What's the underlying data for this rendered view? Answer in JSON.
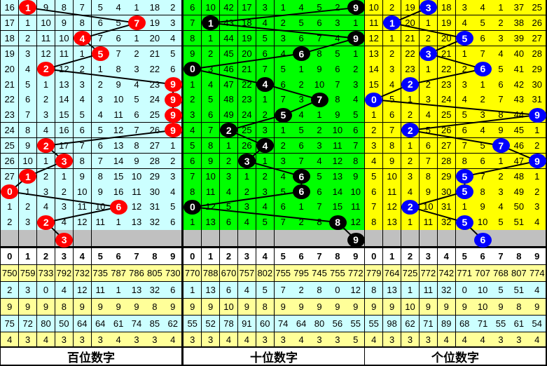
{
  "header_digits": [
    "0",
    "1",
    "2",
    "3",
    "4",
    "5",
    "6",
    "7",
    "8",
    "9"
  ],
  "colors": {
    "grid": "#000000",
    "gray_row": "#C0C0C0",
    "stat_yellow": "#FFFF99",
    "stat_cyan": "#CCFFFF"
  },
  "panels": [
    {
      "label": "百位数字",
      "bg": "#CCFFFF",
      "ball_color": "#FF0000",
      "draws": [
        1,
        7,
        4,
        5,
        2,
        9,
        9,
        9,
        9,
        2,
        3,
        1,
        0,
        6,
        2
      ],
      "next": 3,
      "miss": [
        [
          16,
          null,
          9,
          8,
          7,
          5,
          4,
          1,
          18,
          2
        ],
        [
          17,
          1,
          10,
          9,
          8,
          6,
          5,
          null,
          19,
          3
        ],
        [
          18,
          2,
          11,
          10,
          null,
          7,
          6,
          1,
          20,
          4
        ],
        [
          19,
          3,
          12,
          11,
          1,
          null,
          7,
          2,
          21,
          5
        ],
        [
          20,
          4,
          null,
          12,
          2,
          1,
          8,
          3,
          22,
          6
        ],
        [
          21,
          5,
          1,
          13,
          3,
          2,
          9,
          4,
          23,
          null
        ],
        [
          22,
          6,
          2,
          14,
          4,
          3,
          10,
          5,
          24,
          null
        ],
        [
          23,
          7,
          3,
          15,
          5,
          4,
          11,
          6,
          25,
          null
        ],
        [
          24,
          8,
          4,
          16,
          6,
          5,
          12,
          7,
          26,
          null
        ],
        [
          25,
          9,
          null,
          17,
          7,
          6,
          13,
          8,
          27,
          1
        ],
        [
          26,
          10,
          1,
          null,
          8,
          7,
          14,
          9,
          28,
          2
        ],
        [
          27,
          null,
          2,
          1,
          9,
          8,
          15,
          10,
          29,
          3
        ],
        [
          null,
          1,
          3,
          2,
          10,
          9,
          16,
          11,
          30,
          4
        ],
        [
          1,
          2,
          4,
          3,
          11,
          10,
          null,
          12,
          31,
          5
        ],
        [
          2,
          3,
          null,
          4,
          12,
          11,
          1,
          13,
          32,
          6
        ]
      ],
      "stats": [
        [
          750,
          759,
          733,
          792,
          732,
          735,
          787,
          786,
          805,
          730
        ],
        [
          2,
          3,
          0,
          4,
          12,
          11,
          1,
          13,
          32,
          6
        ],
        [
          9,
          9,
          9,
          8,
          9,
          9,
          9,
          9,
          8,
          9
        ],
        [
          75,
          72,
          80,
          50,
          64,
          64,
          61,
          74,
          85,
          62
        ],
        [
          4,
          3,
          4,
          3,
          3,
          3,
          4,
          3,
          3,
          4
        ]
      ]
    },
    {
      "label": "十位数字",
      "bg": "#00FF00",
      "ball_color": "#000000",
      "draws": [
        9,
        1,
        9,
        6,
        0,
        4,
        7,
        5,
        2,
        4,
        3,
        6,
        6,
        0,
        8
      ],
      "next": 9,
      "miss": [
        [
          6,
          10,
          42,
          17,
          3,
          1,
          4,
          5,
          2,
          null
        ],
        [
          7,
          null,
          43,
          18,
          4,
          2,
          5,
          6,
          3,
          1
        ],
        [
          8,
          1,
          44,
          19,
          5,
          3,
          6,
          7,
          4,
          null
        ],
        [
          9,
          2,
          45,
          20,
          6,
          4,
          null,
          8,
          5,
          1
        ],
        [
          null,
          3,
          46,
          21,
          7,
          5,
          1,
          9,
          6,
          2
        ],
        [
          1,
          4,
          47,
          22,
          null,
          6,
          2,
          10,
          7,
          3
        ],
        [
          2,
          5,
          48,
          23,
          1,
          7,
          3,
          null,
          8,
          4
        ],
        [
          3,
          6,
          49,
          24,
          2,
          null,
          4,
          1,
          9,
          5
        ],
        [
          4,
          7,
          null,
          25,
          3,
          1,
          5,
          2,
          10,
          6
        ],
        [
          5,
          8,
          1,
          26,
          null,
          2,
          6,
          3,
          11,
          7
        ],
        [
          6,
          9,
          2,
          null,
          1,
          3,
          7,
          4,
          12,
          8
        ],
        [
          7,
          10,
          3,
          1,
          2,
          4,
          null,
          5,
          13,
          9
        ],
        [
          8,
          11,
          4,
          2,
          3,
          5,
          null,
          6,
          14,
          10
        ],
        [
          null,
          12,
          5,
          3,
          4,
          6,
          1,
          7,
          15,
          11
        ],
        [
          1,
          13,
          6,
          4,
          5,
          7,
          2,
          8,
          null,
          12
        ]
      ],
      "stats": [
        [
          770,
          788,
          670,
          757,
          802,
          755,
          795,
          745,
          755,
          772
        ],
        [
          1,
          13,
          6,
          4,
          5,
          7,
          2,
          8,
          0,
          12
        ],
        [
          9,
          9,
          10,
          9,
          8,
          9,
          9,
          9,
          9,
          9
        ],
        [
          55,
          52,
          78,
          91,
          60,
          74,
          64,
          80,
          56,
          55
        ],
        [
          3,
          3,
          4,
          4,
          3,
          3,
          4,
          3,
          3,
          5
        ]
      ]
    },
    {
      "label": "个位数字",
      "bg": "#FFFF00",
      "ball_color": "#0000FF",
      "draws": [
        3,
        1,
        5,
        3,
        6,
        2,
        0,
        9,
        2,
        7,
        9,
        5,
        5,
        2,
        5
      ],
      "next": 6,
      "miss": [
        [
          10,
          2,
          19,
          null,
          18,
          3,
          4,
          1,
          37,
          25
        ],
        [
          11,
          null,
          20,
          1,
          19,
          4,
          5,
          2,
          38,
          26
        ],
        [
          12,
          1,
          21,
          2,
          20,
          null,
          6,
          3,
          39,
          27
        ],
        [
          13,
          2,
          22,
          null,
          21,
          1,
          7,
          4,
          40,
          28
        ],
        [
          14,
          3,
          23,
          1,
          22,
          2,
          null,
          5,
          41,
          29
        ],
        [
          15,
          4,
          null,
          2,
          23,
          3,
          1,
          6,
          42,
          30
        ],
        [
          null,
          5,
          1,
          3,
          24,
          4,
          2,
          7,
          43,
          31
        ],
        [
          1,
          6,
          2,
          4,
          25,
          5,
          3,
          8,
          44,
          null
        ],
        [
          2,
          7,
          null,
          5,
          26,
          6,
          4,
          9,
          45,
          1
        ],
        [
          3,
          8,
          1,
          6,
          27,
          7,
          5,
          null,
          46,
          2
        ],
        [
          4,
          9,
          2,
          7,
          28,
          8,
          6,
          1,
          47,
          null
        ],
        [
          5,
          10,
          3,
          8,
          29,
          null,
          7,
          2,
          48,
          1
        ],
        [
          6,
          11,
          4,
          9,
          30,
          null,
          8,
          3,
          49,
          2
        ],
        [
          7,
          12,
          null,
          10,
          31,
          1,
          9,
          4,
          50,
          3
        ],
        [
          8,
          13,
          1,
          11,
          32,
          null,
          10,
          5,
          51,
          4
        ]
      ],
      "stats": [
        [
          779,
          764,
          725,
          772,
          742,
          771,
          707,
          768,
          807,
          774
        ],
        [
          8,
          13,
          1,
          11,
          32,
          0,
          10,
          5,
          51,
          4
        ],
        [
          9,
          9,
          10,
          9,
          9,
          9,
          10,
          9,
          8,
          9
        ],
        [
          55,
          98,
          62,
          71,
          89,
          68,
          71,
          55,
          61,
          54
        ],
        [
          4,
          3,
          3,
          3,
          4,
          4,
          4,
          3,
          3,
          4
        ]
      ]
    }
  ]
}
